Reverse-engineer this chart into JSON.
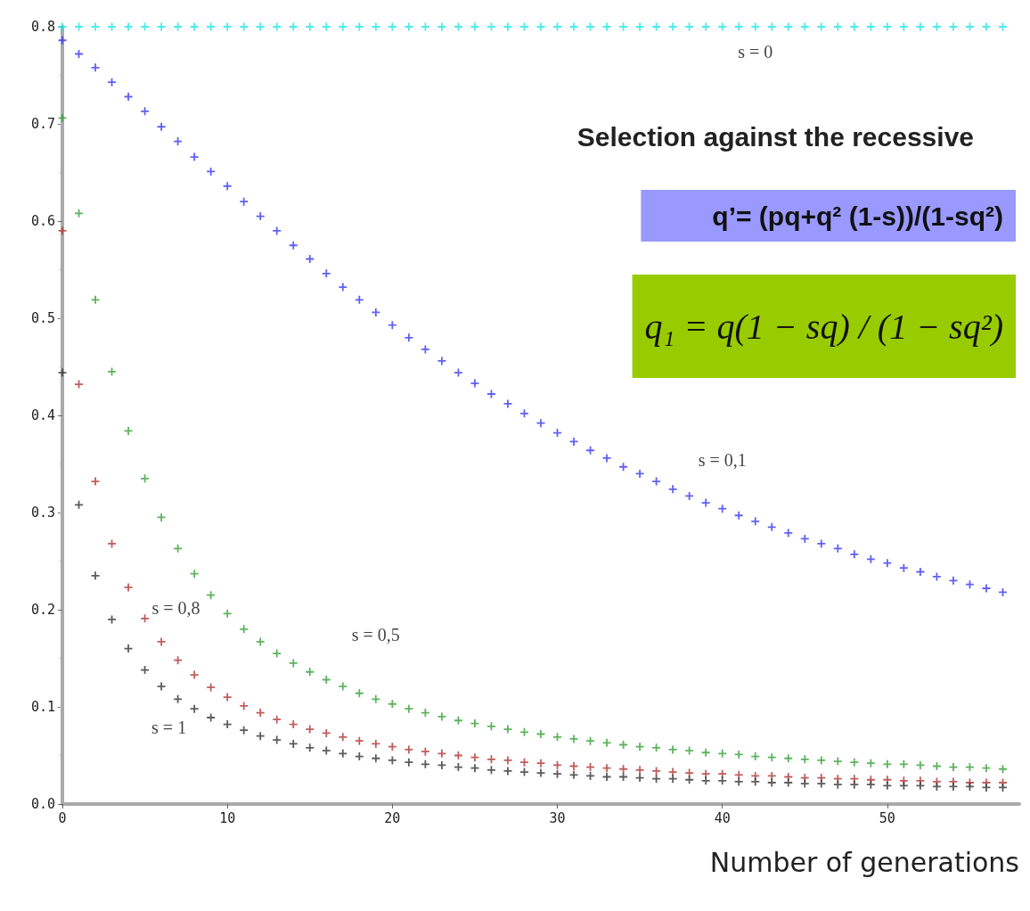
{
  "chart_data": {
    "type": "scatter",
    "title": "Selection against the recessive",
    "xlabel": "Number of generations",
    "x": [
      0,
      1,
      2,
      3,
      4,
      5,
      6,
      7,
      8,
      9,
      10,
      11,
      12,
      13,
      14,
      15,
      16,
      17,
      18,
      19,
      20,
      21,
      22,
      23,
      24,
      25,
      26,
      27,
      28,
      29,
      30,
      31,
      32,
      33,
      34,
      35,
      36,
      37,
      38,
      39,
      40,
      41,
      42,
      43,
      44,
      45,
      46,
      47,
      48,
      49,
      50,
      51,
      52,
      53,
      54,
      55,
      56,
      57
    ],
    "series": [
      {
        "name": "s = 0",
        "color": "#22e5e5",
        "values": [
          0.8,
          0.8,
          0.8,
          0.8,
          0.8,
          0.8,
          0.8,
          0.8,
          0.8,
          0.8,
          0.8,
          0.8,
          0.8,
          0.8,
          0.8,
          0.8,
          0.8,
          0.8,
          0.8,
          0.8,
          0.8,
          0.8,
          0.8,
          0.8,
          0.8,
          0.8,
          0.8,
          0.8,
          0.8,
          0.8,
          0.8,
          0.8,
          0.8,
          0.8,
          0.8,
          0.8,
          0.8,
          0.8,
          0.8,
          0.8,
          0.8,
          0.8,
          0.8,
          0.8,
          0.8,
          0.8,
          0.8,
          0.8,
          0.8,
          0.8,
          0.8,
          0.8,
          0.8,
          0.8,
          0.8,
          0.8,
          0.8,
          0.8
        ]
      },
      {
        "name": "s = 0,1",
        "color": "#3838f0",
        "values": [
          0.786,
          0.772,
          0.758,
          0.743,
          0.728,
          0.713,
          0.697,
          0.682,
          0.666,
          0.651,
          0.636,
          0.62,
          0.605,
          0.59,
          0.575,
          0.561,
          0.546,
          0.532,
          0.519,
          0.506,
          0.493,
          0.48,
          0.468,
          0.456,
          0.444,
          0.433,
          0.422,
          0.412,
          0.402,
          0.392,
          0.382,
          0.373,
          0.364,
          0.356,
          0.347,
          0.34,
          0.332,
          0.324,
          0.317,
          0.31,
          0.304,
          0.297,
          0.291,
          0.285,
          0.279,
          0.273,
          0.268,
          0.263,
          0.257,
          0.252,
          0.248,
          0.243,
          0.239,
          0.234,
          0.23,
          0.226,
          0.222,
          0.218
        ]
      },
      {
        "name": "s = 0,5",
        "color": "#34a034",
        "values": [
          0.706,
          0.608,
          0.519,
          0.445,
          0.384,
          0.335,
          0.295,
          0.263,
          0.237,
          0.215,
          0.196,
          0.18,
          0.167,
          0.155,
          0.145,
          0.136,
          0.128,
          0.121,
          0.114,
          0.108,
          0.103,
          0.098,
          0.094,
          0.09,
          0.086,
          0.083,
          0.08,
          0.077,
          0.074,
          0.072,
          0.069,
          0.067,
          0.065,
          0.063,
          0.061,
          0.059,
          0.058,
          0.056,
          0.055,
          0.053,
          0.052,
          0.051,
          0.049,
          0.048,
          0.047,
          0.046,
          0.045,
          0.044,
          0.043,
          0.042,
          0.041,
          0.041,
          0.04,
          0.039,
          0.038,
          0.038,
          0.037,
          0.036
        ]
      },
      {
        "name": "s = 0,8",
        "color": "#b03434",
        "values": [
          0.59,
          0.432,
          0.332,
          0.268,
          0.223,
          0.191,
          0.167,
          0.148,
          0.133,
          0.12,
          0.11,
          0.101,
          0.094,
          0.087,
          0.082,
          0.077,
          0.073,
          0.069,
          0.065,
          0.062,
          0.059,
          0.056,
          0.054,
          0.052,
          0.05,
          0.048,
          0.046,
          0.045,
          0.043,
          0.042,
          0.04,
          0.039,
          0.038,
          0.037,
          0.036,
          0.035,
          0.034,
          0.033,
          0.032,
          0.031,
          0.031,
          0.03,
          0.029,
          0.029,
          0.028,
          0.027,
          0.027,
          0.026,
          0.026,
          0.025,
          0.025,
          0.024,
          0.024,
          0.023,
          0.023,
          0.022,
          0.022,
          0.022
        ]
      },
      {
        "name": "s = 1",
        "color": "#333333",
        "values": [
          0.444,
          0.308,
          0.235,
          0.19,
          0.16,
          0.138,
          0.121,
          0.108,
          0.098,
          0.089,
          0.082,
          0.076,
          0.07,
          0.066,
          0.062,
          0.058,
          0.055,
          0.052,
          0.049,
          0.047,
          0.045,
          0.043,
          0.041,
          0.04,
          0.038,
          0.037,
          0.035,
          0.034,
          0.033,
          0.032,
          0.031,
          0.03,
          0.029,
          0.028,
          0.028,
          0.027,
          0.026,
          0.026,
          0.025,
          0.024,
          0.024,
          0.023,
          0.023,
          0.022,
          0.022,
          0.021,
          0.021,
          0.02,
          0.02,
          0.02,
          0.019,
          0.019,
          0.019,
          0.018,
          0.018,
          0.018,
          0.017,
          0.017
        ]
      }
    ],
    "xlim": [
      0,
      58
    ],
    "xticks": [
      0,
      10,
      20,
      30,
      40,
      50
    ],
    "ylim": [
      0,
      0.8
    ],
    "yticks": [
      {
        "value": 0,
        "label": "0.0"
      },
      {
        "value": 0.1,
        "label": "0.1"
      },
      {
        "value": 0.2,
        "label": "0.2"
      },
      {
        "value": 0.3,
        "label": "0.3"
      },
      {
        "value": 0.4,
        "label": "0.4"
      },
      {
        "value": 0.5,
        "label": "0.5"
      },
      {
        "value": 0.6,
        "label": "0.6"
      },
      {
        "value": 0.7,
        "label": "0.7"
      },
      {
        "value": 0.8,
        "label": "0.8"
      }
    ],
    "marker": "cross",
    "grid": false,
    "legend": false,
    "annotations": [
      "q’= (pq+q² (1-s))/(1-sq²)",
      "q₁ = q(1 − sq) / (1 − sq²)"
    ]
  }
}
